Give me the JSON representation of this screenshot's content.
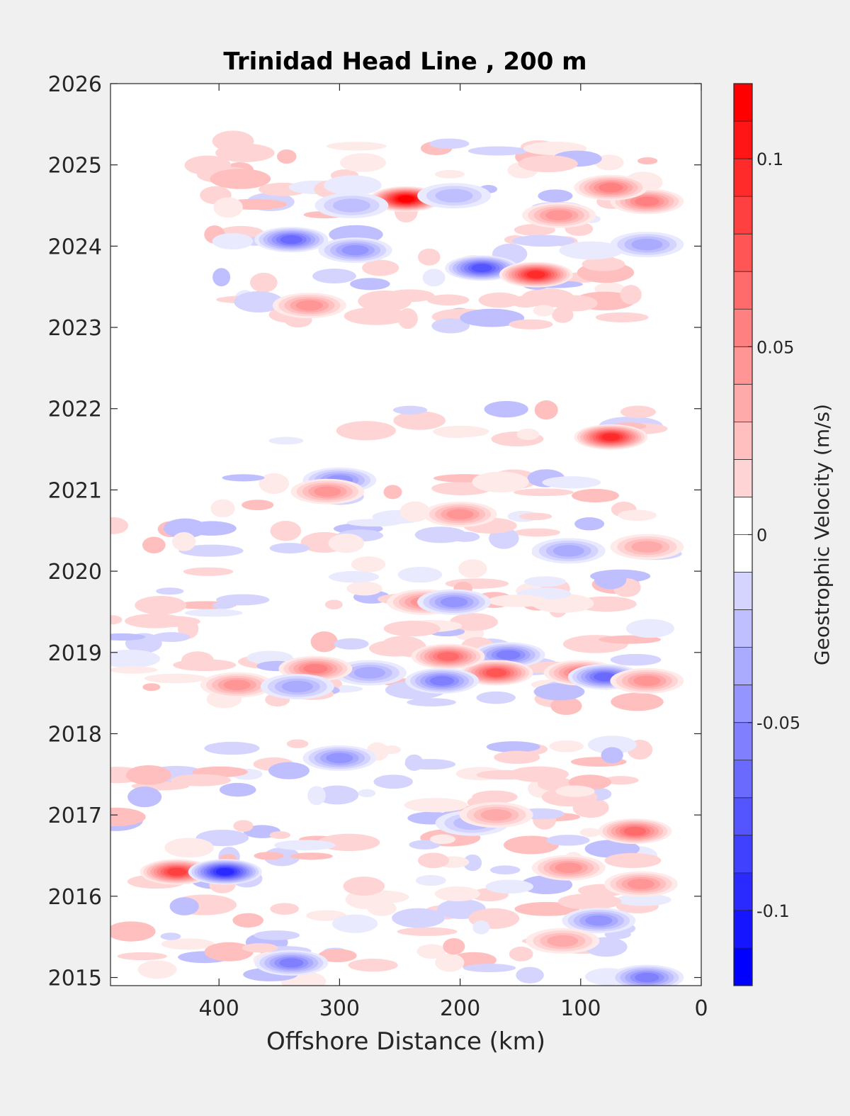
{
  "chart_data": {
    "type": "heatmap",
    "title": "Trinidad Head Line , 200 m",
    "xlabel": "Offshore Distance (km)",
    "ylabel": "",
    "x_direction": "reversed",
    "xlim": [
      0,
      490
    ],
    "ylim": [
      2014.9,
      2026
    ],
    "xticks": [
      400,
      300,
      200,
      100,
      0
    ],
    "yticks": [
      2015,
      2016,
      2017,
      2018,
      2019,
      2020,
      2021,
      2022,
      2023,
      2024,
      2025,
      2026
    ],
    "colorbar": {
      "label": "Geostrophic Velocity (m/s)",
      "range": [
        -0.12,
        0.12
      ],
      "step": 0.01,
      "ticks": [
        -0.1,
        -0.05,
        0,
        0.05,
        0.1
      ],
      "colors": {
        "negative": "#0000ff",
        "zero": "#ffffff",
        "positive": "#ff0000"
      }
    },
    "data_blocks": [
      {
        "t_start": 2014.9,
        "t_end": 2017.9,
        "x_min": 40,
        "x_max": 490
      },
      {
        "t_start": 2018.3,
        "t_end": 2020.6,
        "x_min": 40,
        "x_max": 490
      },
      {
        "t_start": 2020.65,
        "t_end": 2021.15,
        "x_min": 40,
        "x_max": 420
      },
      {
        "t_start": 2021.6,
        "t_end": 2022.0,
        "x_min": 40,
        "x_max": 360
      },
      {
        "t_start": 2023.0,
        "t_end": 2025.3,
        "x_min": 40,
        "x_max": 410
      }
    ],
    "features": [
      {
        "x": 245,
        "t": 2024.58,
        "v": 0.12
      },
      {
        "x": 182,
        "t": 2023.73,
        "v": -0.08
      },
      {
        "x": 137,
        "t": 2023.65,
        "v": 0.1
      },
      {
        "x": 340,
        "t": 2024.08,
        "v": -0.07
      },
      {
        "x": 287,
        "t": 2023.95,
        "v": -0.05
      },
      {
        "x": 45,
        "t": 2024.55,
        "v": 0.06
      },
      {
        "x": 75,
        "t": 2024.72,
        "v": 0.06
      },
      {
        "x": 118,
        "t": 2024.38,
        "v": 0.05
      },
      {
        "x": 205,
        "t": 2024.62,
        "v": -0.03
      },
      {
        "x": 45,
        "t": 2024.02,
        "v": -0.04
      },
      {
        "x": 325,
        "t": 2023.27,
        "v": 0.05
      },
      {
        "x": 290,
        "t": 2024.5,
        "v": -0.03
      },
      {
        "x": 75,
        "t": 2021.65,
        "v": 0.1
      },
      {
        "x": 300,
        "t": 2021.12,
        "v": -0.05
      },
      {
        "x": 310,
        "t": 2020.98,
        "v": 0.05
      },
      {
        "x": 200,
        "t": 2020.7,
        "v": 0.05
      },
      {
        "x": 45,
        "t": 2020.3,
        "v": 0.04
      },
      {
        "x": 110,
        "t": 2020.25,
        "v": -0.04
      },
      {
        "x": 230,
        "t": 2019.62,
        "v": 0.05
      },
      {
        "x": 160,
        "t": 2018.97,
        "v": -0.06
      },
      {
        "x": 170,
        "t": 2018.75,
        "v": 0.08
      },
      {
        "x": 210,
        "t": 2018.95,
        "v": 0.07
      },
      {
        "x": 100,
        "t": 2018.75,
        "v": 0.06
      },
      {
        "x": 275,
        "t": 2018.75,
        "v": -0.04
      },
      {
        "x": 215,
        "t": 2018.65,
        "v": -0.06
      },
      {
        "x": 80,
        "t": 2018.7,
        "v": -0.07
      },
      {
        "x": 320,
        "t": 2018.8,
        "v": 0.06
      },
      {
        "x": 385,
        "t": 2018.6,
        "v": 0.05
      },
      {
        "x": 335,
        "t": 2018.58,
        "v": -0.04
      },
      {
        "x": 205,
        "t": 2019.62,
        "v": -0.05
      },
      {
        "x": 45,
        "t": 2018.65,
        "v": 0.05
      },
      {
        "x": 300,
        "t": 2017.7,
        "v": -0.05
      },
      {
        "x": 55,
        "t": 2016.8,
        "v": 0.07
      },
      {
        "x": 435,
        "t": 2016.3,
        "v": 0.09
      },
      {
        "x": 395,
        "t": 2016.3,
        "v": -0.1
      },
      {
        "x": 110,
        "t": 2016.35,
        "v": 0.05
      },
      {
        "x": 340,
        "t": 2015.18,
        "v": -0.06
      },
      {
        "x": 45,
        "t": 2015.0,
        "v": -0.06
      },
      {
        "x": 85,
        "t": 2015.7,
        "v": -0.05
      },
      {
        "x": 50,
        "t": 2016.15,
        "v": 0.05
      },
      {
        "x": 190,
        "t": 2016.9,
        "v": -0.03
      },
      {
        "x": 170,
        "t": 2017.0,
        "v": 0.04
      },
      {
        "x": 115,
        "t": 2015.45,
        "v": 0.04
      }
    ]
  }
}
